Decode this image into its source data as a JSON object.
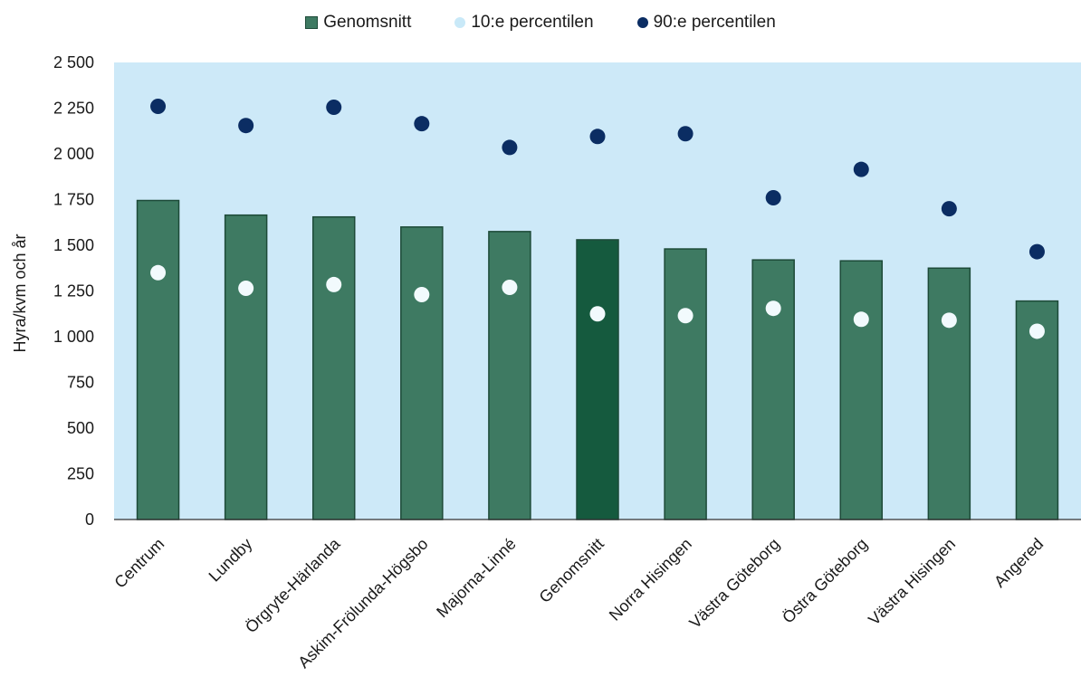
{
  "chart_data": {
    "type": "bar",
    "title": "",
    "xlabel": "",
    "ylabel": "Hyra/kvm och år",
    "ylim": [
      0,
      2500
    ],
    "yticks": [
      "0",
      "250",
      "500",
      "750",
      "1 000",
      "1 250",
      "1 500",
      "1 750",
      "2 000",
      "2 250",
      "2 500"
    ],
    "ytick_values": [
      0,
      250,
      500,
      750,
      1000,
      1250,
      1500,
      1750,
      2000,
      2250,
      2500
    ],
    "grid": false,
    "legend_position": "top-center",
    "categories": [
      "Centrum",
      "Lundby",
      "Örgryte-Härlanda",
      "Askim-Frölunda-Högsbo",
      "Majorna-Linné",
      "Genomsnitt",
      "Norra Hisingen",
      "Västra Göteborg",
      "Östra Göteborg",
      "Västra Hisingen",
      "Angered"
    ],
    "highlight_category": "Genomsnitt",
    "series": [
      {
        "name": "Genomsnitt",
        "kind": "bar",
        "color": "#3e7a62",
        "highlight_color": "#155a3e",
        "values": [
          1745,
          1665,
          1655,
          1600,
          1575,
          1530,
          1480,
          1420,
          1415,
          1375,
          1195
        ]
      },
      {
        "name": "10:e percentilen",
        "kind": "marker",
        "color": "#f2fafd",
        "legend_color": "#c9e9f8",
        "values": [
          1350,
          1265,
          1285,
          1230,
          1270,
          1125,
          1115,
          1155,
          1095,
          1090,
          1030
        ]
      },
      {
        "name": "90:e percentilen",
        "kind": "marker",
        "color": "#0b2d63",
        "values": [
          2260,
          2155,
          2255,
          2165,
          2035,
          2095,
          2110,
          1760,
          1915,
          1700,
          1465
        ]
      }
    ],
    "background_color": "#cde9f8"
  }
}
